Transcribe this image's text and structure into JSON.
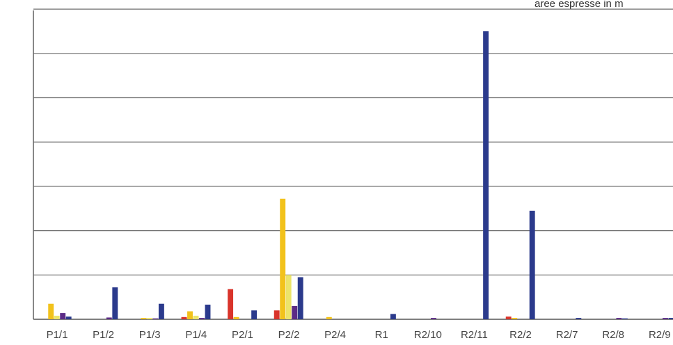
{
  "chart_data": {
    "type": "bar",
    "title": "",
    "note": "aree espresse in m",
    "xlabel": "",
    "ylabel": "",
    "ylim": [
      0,
      7
    ],
    "grid": true,
    "legend": "none",
    "categories": [
      "P1/1",
      "P1/2",
      "P1/3",
      "P1/4",
      "P2/1",
      "P2/2",
      "P2/4",
      "R1",
      "R2/10",
      "R2/11",
      "R2/2",
      "R2/7",
      "R2/8",
      "R2/9"
    ],
    "series": [
      {
        "color": "#d9342b",
        "values": [
          0.0,
          0.0,
          0.0,
          0.05,
          0.68,
          0.2,
          0.0,
          0.0,
          0.0,
          0.0,
          0.06,
          0.0,
          0.0,
          0.0
        ]
      },
      {
        "color": "#f2c21b",
        "values": [
          0.35,
          0.0,
          0.03,
          0.18,
          0.05,
          2.72,
          0.05,
          0.0,
          0.0,
          0.0,
          0.03,
          0.0,
          0.0,
          0.0
        ]
      },
      {
        "color": "#ece46a",
        "values": [
          0.08,
          0.0,
          0.03,
          0.08,
          0.0,
          1.0,
          0.0,
          0.0,
          0.0,
          0.0,
          0.0,
          0.0,
          0.0,
          0.0
        ]
      },
      {
        "color": "#5b2c86",
        "values": [
          0.14,
          0.04,
          0.02,
          0.03,
          0.0,
          0.3,
          0.0,
          0.0,
          0.03,
          0.0,
          0.0,
          0.0,
          0.03,
          0.03
        ]
      },
      {
        "color": "#2b3a8c",
        "values": [
          0.06,
          0.72,
          0.35,
          0.33,
          0.2,
          0.95,
          0.0,
          0.12,
          0.0,
          6.5,
          2.45,
          0.03,
          0.02,
          0.03
        ]
      }
    ]
  }
}
